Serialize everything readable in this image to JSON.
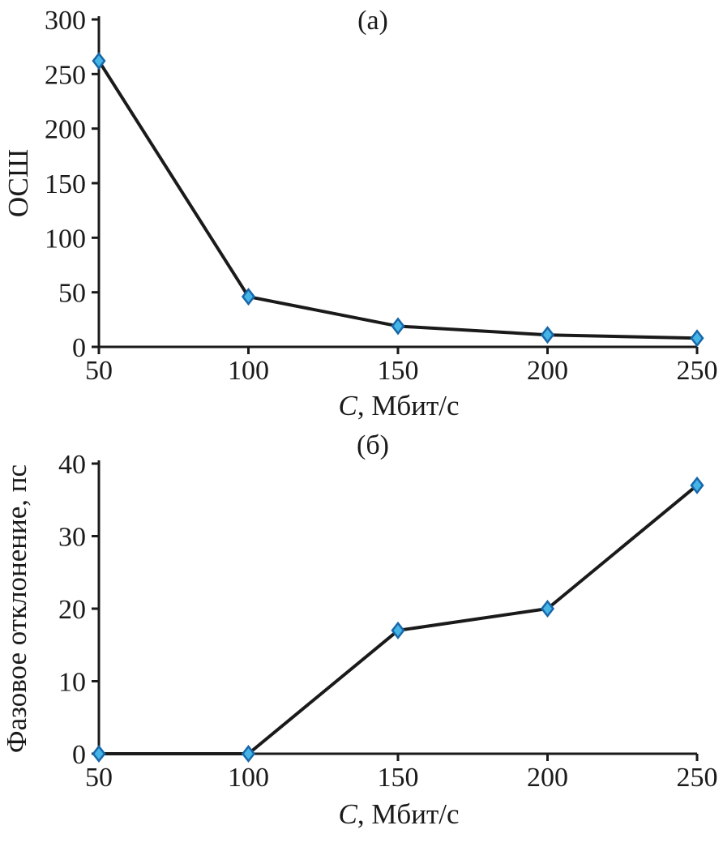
{
  "figure": {
    "background": "#ffffff",
    "text_color": "#1a1a1a"
  },
  "chart_data": [
    {
      "type": "line",
      "panel_label": "(а)",
      "xlabel": {
        "italic": "C",
        "rest": ", Мбит/с"
      },
      "ylabel": "ОСШ",
      "x": [
        50,
        100,
        150,
        200,
        250
      ],
      "series": [
        {
          "name": "ОСШ",
          "values": [
            262,
            46,
            19,
            11,
            8
          ]
        }
      ],
      "xlim": [
        50,
        250
      ],
      "ylim": [
        0,
        300
      ],
      "xticks": [
        50,
        100,
        150,
        200,
        250
      ],
      "yticks": [
        0,
        50,
        100,
        150,
        200,
        250,
        300
      ],
      "grid": false,
      "legend": "none",
      "line_color": "#1a1a1a",
      "marker": "diamond",
      "marker_fill": "#45b5e8",
      "marker_edge": "#1767a8"
    },
    {
      "type": "line",
      "panel_label": "(б)",
      "xlabel": {
        "italic": "C",
        "rest": ", Мбит/с"
      },
      "ylabel": "Фазовое отклонение, пс",
      "x": [
        50,
        100,
        150,
        200,
        250
      ],
      "series": [
        {
          "name": "Фазовое отклонение",
          "values": [
            0,
            0,
            17,
            20,
            37
          ]
        }
      ],
      "xlim": [
        50,
        250
      ],
      "ylim": [
        0,
        40
      ],
      "xticks": [
        50,
        100,
        150,
        200,
        250
      ],
      "yticks": [
        0,
        10,
        20,
        30,
        40
      ],
      "grid": false,
      "legend": "none",
      "line_color": "#1a1a1a",
      "marker": "diamond",
      "marker_fill": "#45b5e8",
      "marker_edge": "#1767a8"
    }
  ]
}
